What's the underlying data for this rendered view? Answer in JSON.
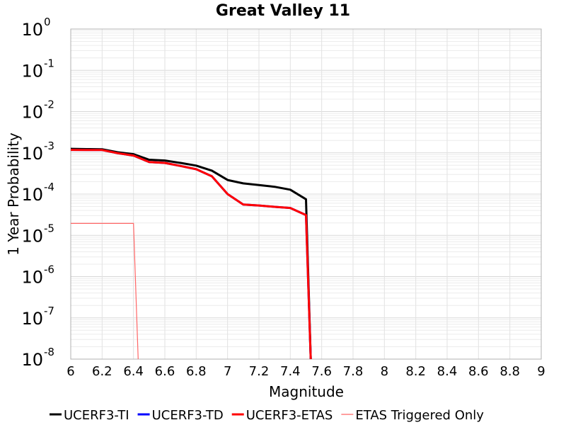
{
  "chart_data": {
    "type": "line",
    "title": "Great Valley 11",
    "xlabel": "Magnitude",
    "ylabel": "1 Year Probability",
    "xlim": [
      6,
      9
    ],
    "ylim": [
      1e-08,
      1
    ],
    "yscale": "log",
    "grid": true,
    "legend_position": "bottom",
    "x_ticks": [
      "6",
      "6.2",
      "6.4",
      "6.6",
      "6.8",
      "7",
      "7.2",
      "7.4",
      "7.6",
      "7.8",
      "8",
      "8.2",
      "8.4",
      "8.6",
      "8.8",
      "9"
    ],
    "y_ticks": [
      {
        "base": "10",
        "exp": "0"
      },
      {
        "base": "10",
        "exp": "-1"
      },
      {
        "base": "10",
        "exp": "-2"
      },
      {
        "base": "10",
        "exp": "-3"
      },
      {
        "base": "10",
        "exp": "-4"
      },
      {
        "base": "10",
        "exp": "-5"
      },
      {
        "base": "10",
        "exp": "-6"
      },
      {
        "base": "10",
        "exp": "-7"
      },
      {
        "base": "10",
        "exp": "-8"
      }
    ],
    "series": [
      {
        "name": "UCERF3-TI",
        "color": "#000000",
        "width": 3,
        "points": [
          [
            6.0,
            0.00125
          ],
          [
            6.1,
            0.00123
          ],
          [
            6.2,
            0.00122
          ],
          [
            6.3,
            0.00103
          ],
          [
            6.4,
            0.00093
          ],
          [
            6.5,
            0.00068
          ],
          [
            6.6,
            0.00065
          ],
          [
            6.7,
            0.00057
          ],
          [
            6.8,
            0.00049
          ],
          [
            6.9,
            0.00037
          ],
          [
            7.0,
            0.00022
          ],
          [
            7.1,
            0.000182
          ],
          [
            7.2,
            0.000166
          ],
          [
            7.3,
            0.00015
          ],
          [
            7.4,
            0.000128
          ],
          [
            7.5,
            7.5e-05
          ],
          [
            7.53,
            1e-08
          ]
        ]
      },
      {
        "name": "UCERF3-TD",
        "color": "#0000ff",
        "width": 3,
        "points": [
          [
            6.0,
            0.00118
          ],
          [
            6.1,
            0.00117
          ],
          [
            6.2,
            0.00117
          ],
          [
            6.3,
            0.00098
          ],
          [
            6.4,
            0.00086
          ],
          [
            6.5,
            0.0006
          ],
          [
            6.6,
            0.00057
          ],
          [
            6.7,
            0.00048
          ],
          [
            6.8,
            0.0004
          ],
          [
            6.9,
            0.00027
          ],
          [
            7.0,
            0.0001
          ],
          [
            7.1,
            5.6e-05
          ],
          [
            7.2,
            5.3e-05
          ],
          [
            7.3,
            4.9e-05
          ],
          [
            7.4,
            4.6e-05
          ],
          [
            7.5,
            3.1e-05
          ],
          [
            7.53,
            1e-08
          ]
        ]
      },
      {
        "name": "UCERF3-ETAS",
        "color": "#ff0000",
        "width": 3,
        "points": [
          [
            6.0,
            0.00118
          ],
          [
            6.1,
            0.00117
          ],
          [
            6.2,
            0.00117
          ],
          [
            6.3,
            0.00098
          ],
          [
            6.4,
            0.00086
          ],
          [
            6.5,
            0.0006
          ],
          [
            6.6,
            0.00057
          ],
          [
            6.7,
            0.00048
          ],
          [
            6.8,
            0.0004
          ],
          [
            6.9,
            0.00027
          ],
          [
            7.0,
            0.0001
          ],
          [
            7.1,
            5.6e-05
          ],
          [
            7.2,
            5.3e-05
          ],
          [
            7.3,
            4.9e-05
          ],
          [
            7.4,
            4.6e-05
          ],
          [
            7.5,
            3.1e-05
          ],
          [
            7.53,
            1e-08
          ]
        ]
      },
      {
        "name": "ETAS Triggered Only",
        "color": "#ff6666",
        "width": 1.2,
        "points": [
          [
            6.0,
            1.95e-05
          ],
          [
            6.4,
            1.95e-05
          ],
          [
            6.43,
            1e-08
          ]
        ]
      }
    ]
  }
}
